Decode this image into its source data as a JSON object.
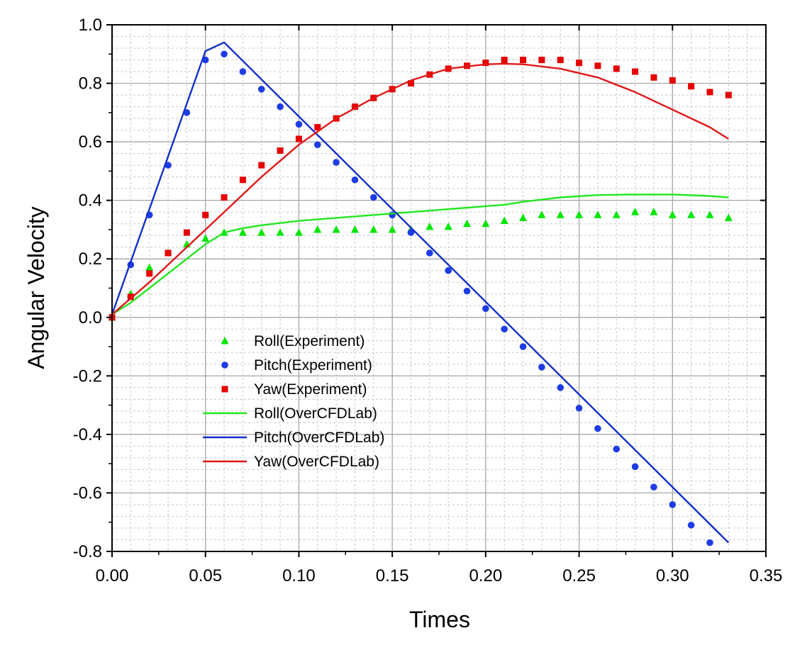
{
  "chart_data": {
    "type": "line",
    "title": "",
    "xlabel": "Times",
    "ylabel": "Angular Velocity",
    "xlim": [
      0.0,
      0.35
    ],
    "ylim": [
      -0.8,
      1.0
    ],
    "xticks": [
      "0.00",
      "0.05",
      "0.10",
      "0.15",
      "0.20",
      "0.25",
      "0.30",
      "0.35"
    ],
    "yticks": [
      "-0.8",
      "-0.6",
      "-0.4",
      "-0.2",
      "0.0",
      "0.2",
      "0.4",
      "0.6",
      "0.8",
      "1.0"
    ],
    "grid": true,
    "minor_grid": true,
    "legend_position": "lower-left",
    "series": [
      {
        "name": "Roll(Experiment)",
        "kind": "scatter",
        "marker": "triangle",
        "color": "#00e600",
        "x": [
          0.0,
          0.01,
          0.02,
          0.03,
          0.04,
          0.05,
          0.06,
          0.07,
          0.08,
          0.09,
          0.1,
          0.11,
          0.12,
          0.13,
          0.14,
          0.15,
          0.16,
          0.17,
          0.18,
          0.19,
          0.2,
          0.21,
          0.22,
          0.23,
          0.24,
          0.25,
          0.26,
          0.27,
          0.28,
          0.29,
          0.3,
          0.31,
          0.32,
          0.33
        ],
        "y": [
          0.0,
          0.08,
          0.17,
          0.22,
          0.25,
          0.27,
          0.29,
          0.29,
          0.29,
          0.29,
          0.29,
          0.3,
          0.3,
          0.3,
          0.3,
          0.3,
          0.3,
          0.31,
          0.31,
          0.32,
          0.32,
          0.33,
          0.34,
          0.35,
          0.35,
          0.35,
          0.35,
          0.35,
          0.36,
          0.36,
          0.35,
          0.35,
          0.35,
          0.34
        ]
      },
      {
        "name": "Pitch(Experiment)",
        "kind": "scatter",
        "marker": "circle",
        "color": "#1e3ce6",
        "x": [
          0.01,
          0.02,
          0.03,
          0.04,
          0.05,
          0.06,
          0.07,
          0.08,
          0.09,
          0.1,
          0.11,
          0.12,
          0.13,
          0.14,
          0.15,
          0.16,
          0.17,
          0.18,
          0.19,
          0.2,
          0.21,
          0.22,
          0.23,
          0.24,
          0.25,
          0.26,
          0.27,
          0.28,
          0.29,
          0.3,
          0.31,
          0.32
        ],
        "y": [
          0.18,
          0.35,
          0.52,
          0.7,
          0.88,
          0.9,
          0.84,
          0.78,
          0.72,
          0.66,
          0.59,
          0.53,
          0.47,
          0.41,
          0.35,
          0.29,
          0.22,
          0.16,
          0.09,
          0.03,
          -0.04,
          -0.1,
          -0.17,
          -0.24,
          -0.31,
          -0.38,
          -0.45,
          -0.51,
          -0.58,
          -0.64,
          -0.71,
          -0.77
        ]
      },
      {
        "name": "Yaw(Experiment)",
        "kind": "scatter",
        "marker": "square",
        "color": "#e60000",
        "x": [
          0.0,
          0.01,
          0.02,
          0.03,
          0.04,
          0.05,
          0.06,
          0.07,
          0.08,
          0.09,
          0.1,
          0.11,
          0.12,
          0.13,
          0.14,
          0.15,
          0.16,
          0.17,
          0.18,
          0.19,
          0.2,
          0.21,
          0.22,
          0.23,
          0.24,
          0.25,
          0.26,
          0.27,
          0.28,
          0.29,
          0.3,
          0.31,
          0.32,
          0.33
        ],
        "y": [
          0.0,
          0.07,
          0.15,
          0.22,
          0.29,
          0.35,
          0.41,
          0.47,
          0.52,
          0.57,
          0.61,
          0.65,
          0.68,
          0.72,
          0.75,
          0.78,
          0.8,
          0.83,
          0.85,
          0.86,
          0.87,
          0.88,
          0.88,
          0.88,
          0.88,
          0.87,
          0.86,
          0.85,
          0.84,
          0.82,
          0.81,
          0.79,
          0.77,
          0.76
        ]
      },
      {
        "name": "Roll(OverCFDLab)",
        "kind": "line",
        "color": "#22e622",
        "x": [
          0.0,
          0.01,
          0.02,
          0.03,
          0.04,
          0.05,
          0.06,
          0.07,
          0.08,
          0.1,
          0.12,
          0.14,
          0.16,
          0.18,
          0.2,
          0.21,
          0.22,
          0.24,
          0.26,
          0.28,
          0.3,
          0.32,
          0.33
        ],
        "y": [
          0.01,
          0.05,
          0.1,
          0.15,
          0.2,
          0.25,
          0.29,
          0.305,
          0.315,
          0.33,
          0.34,
          0.35,
          0.36,
          0.37,
          0.38,
          0.385,
          0.395,
          0.41,
          0.418,
          0.42,
          0.42,
          0.415,
          0.41
        ]
      },
      {
        "name": "Pitch(OverCFDLab)",
        "kind": "line",
        "color": "#1330c8",
        "x": [
          0.0,
          0.05,
          0.06,
          0.33
        ],
        "y": [
          0.01,
          0.91,
          0.94,
          -0.77
        ]
      },
      {
        "name": "Yaw(OverCFDLab)",
        "kind": "line",
        "color": "#e01818",
        "x": [
          0.0,
          0.02,
          0.04,
          0.06,
          0.08,
          0.1,
          0.12,
          0.14,
          0.16,
          0.18,
          0.2,
          0.21,
          0.22,
          0.24,
          0.26,
          0.28,
          0.3,
          0.32,
          0.33
        ],
        "y": [
          0.01,
          0.12,
          0.24,
          0.36,
          0.48,
          0.59,
          0.68,
          0.75,
          0.81,
          0.85,
          0.865,
          0.867,
          0.865,
          0.85,
          0.82,
          0.77,
          0.71,
          0.65,
          0.61
        ]
      }
    ]
  }
}
